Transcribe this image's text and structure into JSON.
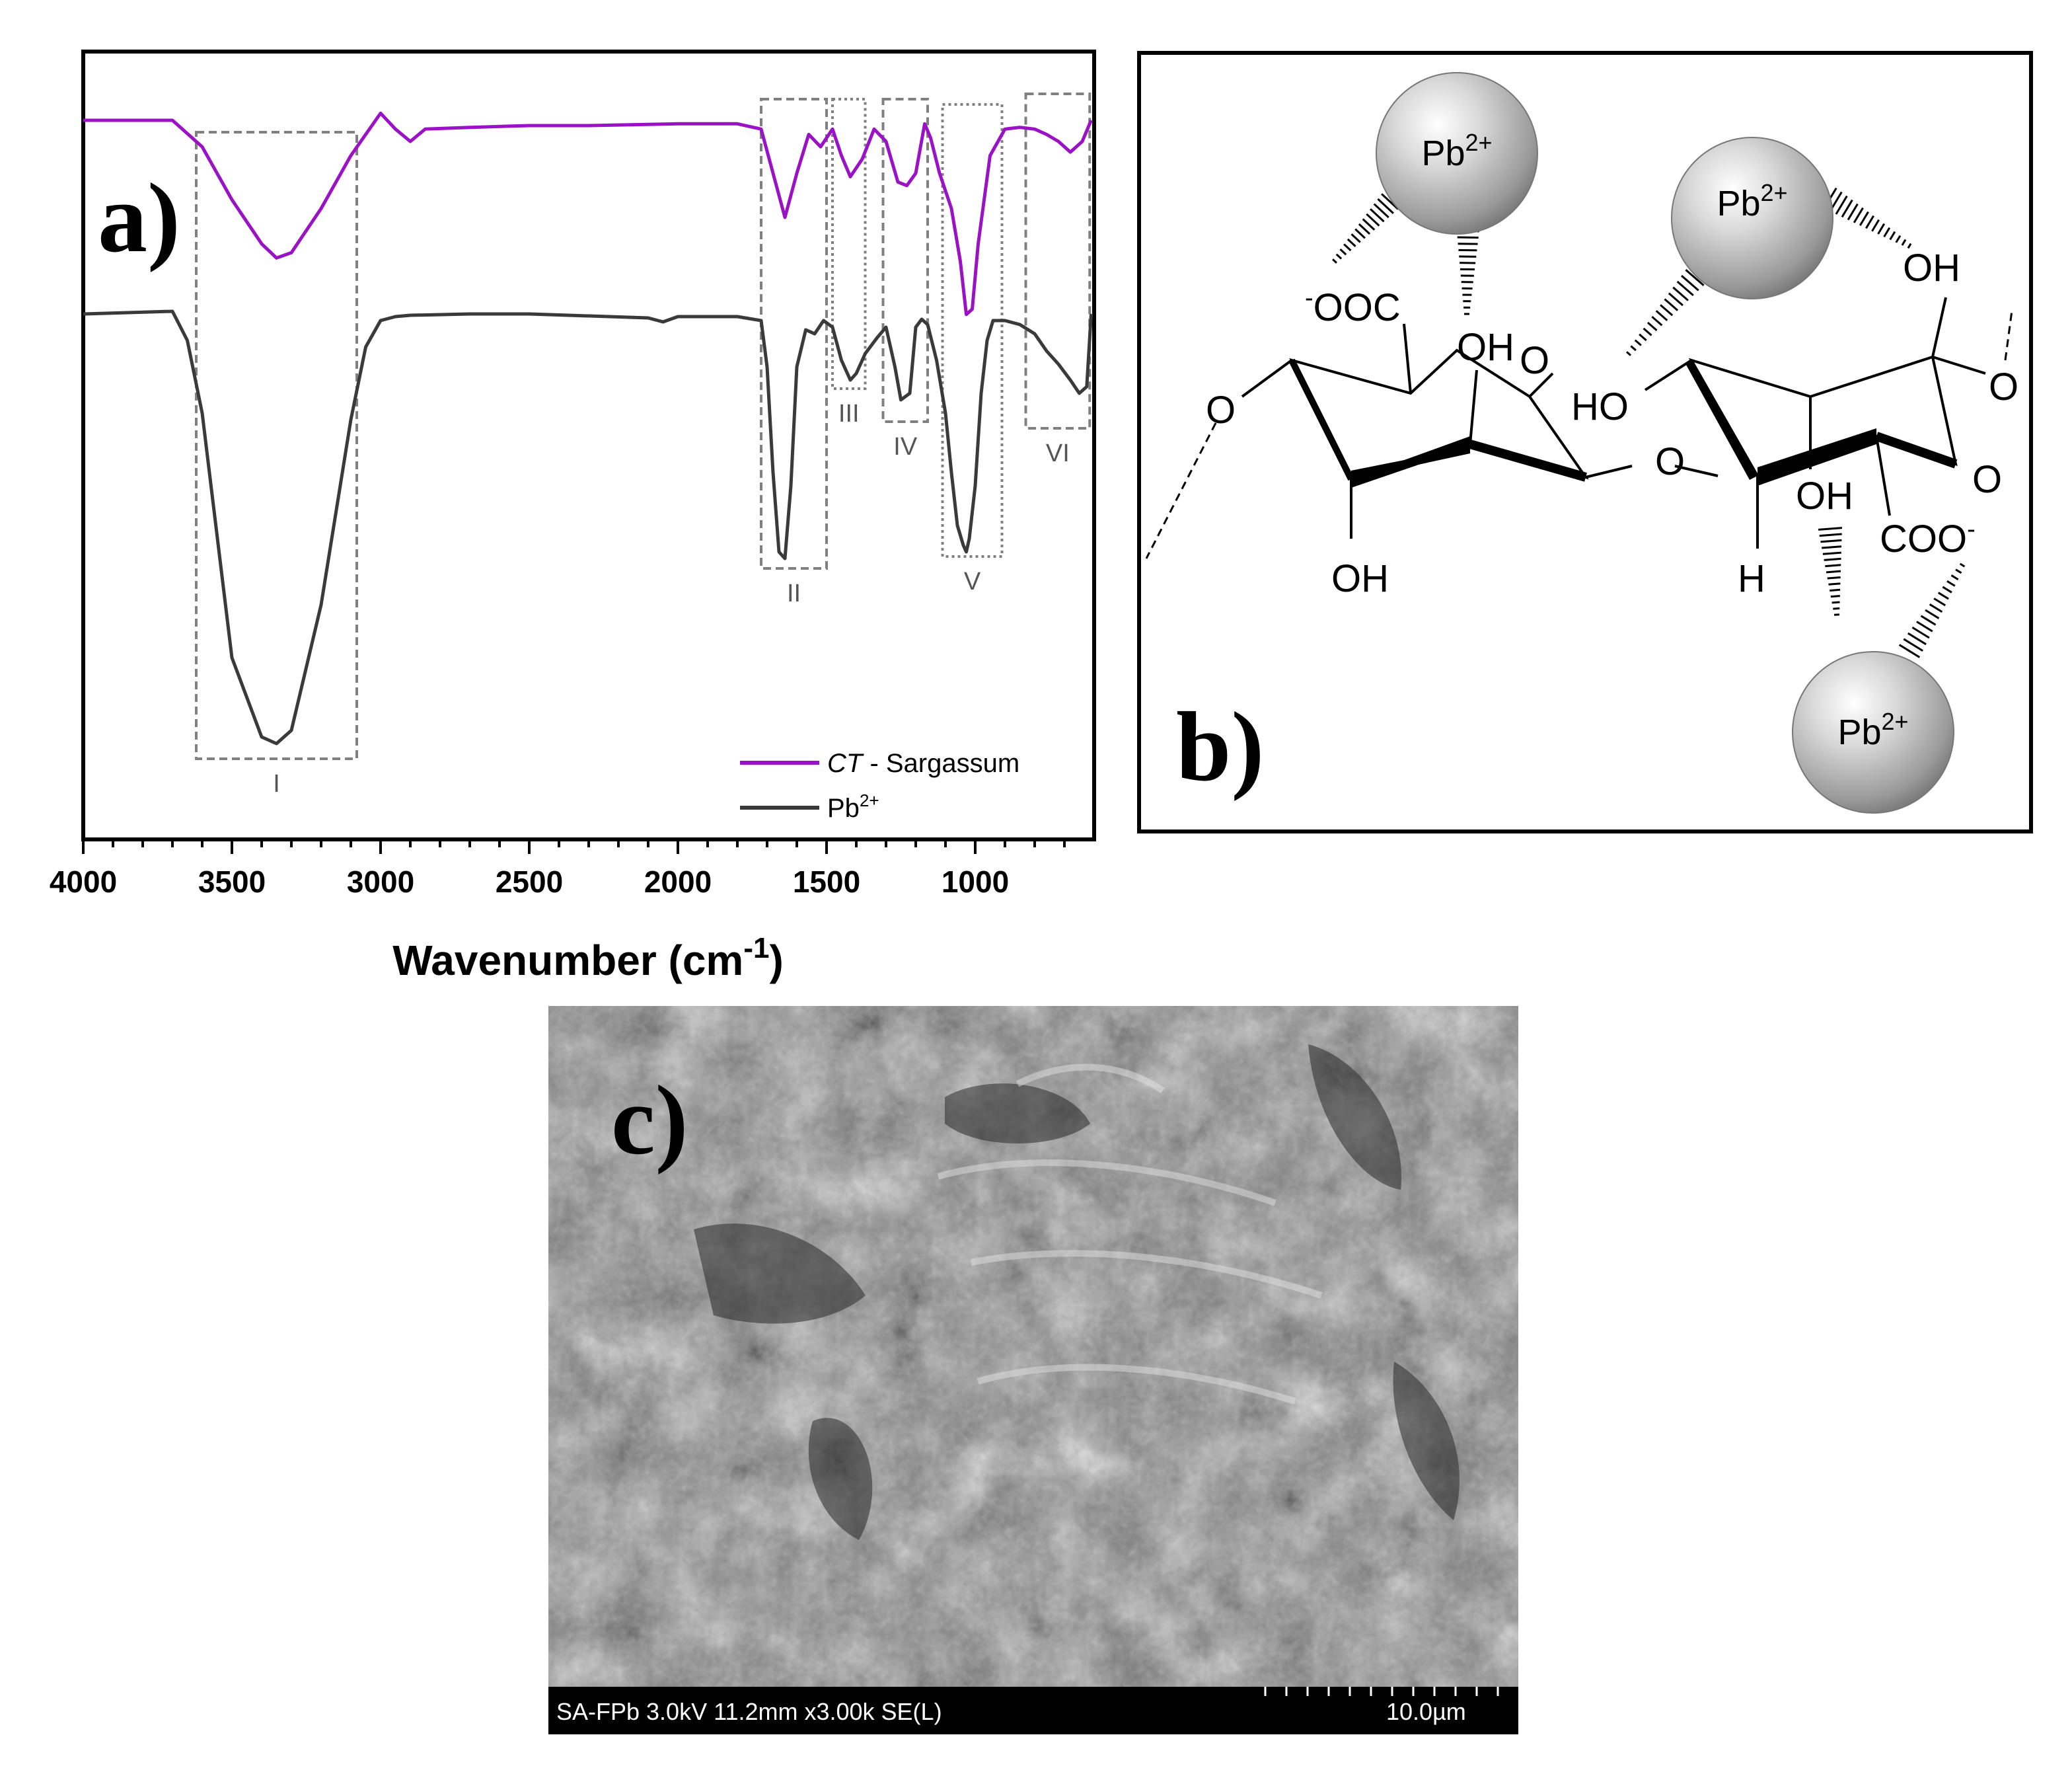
{
  "chart_data": {
    "type": "line",
    "panel_label": "a)",
    "xlabel": "Wavenumber (cm",
    "xlabel_sup": "-1",
    "xlabel_tail": ")",
    "xlim": [
      4000,
      600
    ],
    "x_ticks": [
      4000,
      3500,
      3000,
      2500,
      2000,
      1500,
      1000
    ],
    "y_axis_shown": false,
    "series": [
      {
        "name": "CT - Sargassum",
        "name_italic": "CT",
        "name_rest": " - Sargassum",
        "color": "#9b12c6",
        "x": [
          4000,
          3700,
          3600,
          3500,
          3400,
          3350,
          3300,
          3200,
          3100,
          3000,
          2950,
          2900,
          2850,
          2700,
          2500,
          2300,
          2000,
          1800,
          1720,
          1680,
          1640,
          1600,
          1560,
          1520,
          1480,
          1450,
          1420,
          1380,
          1340,
          1300,
          1260,
          1230,
          1200,
          1170,
          1150,
          1120,
          1080,
          1050,
          1030,
          1010,
          990,
          950,
          900,
          850,
          800,
          760,
          720,
          680,
          640,
          610
        ],
        "y": [
          0.0,
          0.0,
          0.15,
          0.45,
          0.7,
          0.78,
          0.75,
          0.5,
          0.2,
          -0.04,
          0.05,
          0.12,
          0.05,
          0.04,
          0.03,
          0.03,
          0.02,
          0.02,
          0.05,
          0.3,
          0.55,
          0.3,
          0.08,
          0.15,
          0.05,
          0.2,
          0.32,
          0.22,
          0.05,
          0.12,
          0.35,
          0.37,
          0.3,
          0.02,
          0.1,
          0.3,
          0.5,
          0.8,
          1.1,
          1.07,
          0.7,
          0.2,
          0.05,
          0.04,
          0.05,
          0.08,
          0.12,
          0.18,
          0.12,
          0.0
        ]
      },
      {
        "name": "Pb2+",
        "name_base": "Pb",
        "name_sup": "2+",
        "color": "#3a3a3a",
        "x": [
          4000,
          3700,
          3650,
          3600,
          3500,
          3400,
          3350,
          3300,
          3200,
          3100,
          3050,
          3000,
          2950,
          2900,
          2700,
          2500,
          2100,
          2050,
          2000,
          1800,
          1720,
          1700,
          1680,
          1660,
          1640,
          1620,
          1600,
          1570,
          1540,
          1510,
          1480,
          1450,
          1420,
          1400,
          1370,
          1330,
          1300,
          1270,
          1250,
          1220,
          1200,
          1180,
          1160,
          1130,
          1100,
          1080,
          1060,
          1040,
          1030,
          1020,
          1000,
          980,
          960,
          940,
          900,
          850,
          800,
          760,
          720,
          680,
          650,
          625,
          610
        ],
        "y": [
          0.0,
          -0.02,
          0.2,
          0.75,
          2.6,
          3.2,
          3.25,
          3.15,
          2.2,
          0.8,
          0.25,
          0.05,
          0.02,
          0.01,
          0.0,
          0.0,
          0.03,
          0.06,
          0.02,
          0.02,
          0.05,
          0.4,
          1.2,
          1.8,
          1.85,
          1.3,
          0.4,
          0.12,
          0.15,
          0.05,
          0.1,
          0.35,
          0.5,
          0.45,
          0.3,
          0.18,
          0.1,
          0.4,
          0.65,
          0.6,
          0.1,
          0.04,
          0.08,
          0.35,
          0.75,
          1.2,
          1.6,
          1.75,
          1.8,
          1.7,
          1.3,
          0.6,
          0.2,
          0.05,
          0.05,
          0.08,
          0.15,
          0.28,
          0.38,
          0.5,
          0.6,
          0.55,
          0.0
        ]
      }
    ],
    "regions": [
      {
        "label": "I",
        "from": 3620,
        "to": 3080,
        "style": "dashed",
        "label_pos": "bottom"
      },
      {
        "label": "II",
        "from": 1720,
        "to": 1500,
        "style": "dashed",
        "label_pos": "bottom"
      },
      {
        "label": "III",
        "from": 1480,
        "to": 1370,
        "style": "dotted",
        "label_pos": "bottom"
      },
      {
        "label": "IV",
        "from": 1310,
        "to": 1160,
        "style": "dashed",
        "label_pos": "bottom"
      },
      {
        "label": "V",
        "from": 1110,
        "to": 910,
        "style": "dotted",
        "label_pos": "bottom"
      },
      {
        "label": "VI",
        "from": 830,
        "to": 615,
        "style": "dashed",
        "label_pos": "bottom"
      }
    ]
  },
  "panel_b": {
    "label": "b)",
    "ions": [
      "Pb",
      "Pb",
      "Pb"
    ],
    "ion_charge": "2+",
    "groups": {
      "coo_left_sup": "-",
      "coo_left": "OOC",
      "oh_top_left": "OH",
      "oh_top_right": "OH",
      "ho_mid": "HO",
      "o_ring_left": "O",
      "o_link_left": "O",
      "o_glyco": "O",
      "o_ring_right": "O",
      "o_link_right": "O",
      "oh_bottom_left": "OH",
      "h_bottom": "H",
      "oh_mid_right": "OH",
      "coo_right": "COO",
      "coo_right_sup": "-"
    }
  },
  "panel_c": {
    "label": "c)",
    "info": "SA-FPb 3.0kV 11.2mm x3.00k SE(L)",
    "scale": "10.0µm"
  }
}
